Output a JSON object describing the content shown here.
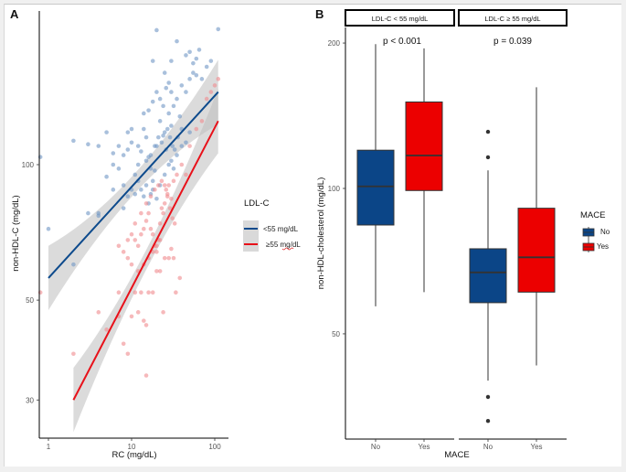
{
  "chart_data": [
    {
      "panel": "A",
      "type": "scatter",
      "title": "",
      "xlabel": "RC (mg/dL)",
      "ylabel": "non-HDL-C (mg/dL)",
      "x_scale": "log10",
      "y_scale": "log10",
      "xlim": [
        0.8,
        130
      ],
      "ylim": [
        22,
        210
      ],
      "x_ticks": [
        1,
        10,
        100
      ],
      "x_tick_labels": [
        "1",
        "10",
        "100"
      ],
      "y_ticks": [
        30,
        50,
        100
      ],
      "y_tick_labels": [
        "30",
        "50",
        "100"
      ],
      "grid": false,
      "legend": {
        "title": "LDL-C",
        "position": "right",
        "entries": [
          {
            "label": "<55 mg/dL",
            "color": "#0d4a8c"
          },
          {
            "label": "≥55 mg/dL",
            "color": "#e8111a"
          }
        ]
      },
      "series": [
        {
          "name": "<55 mg/dL",
          "color": "#0d4a8c",
          "point_color": "#6f96c4",
          "fit_line": {
            "x": [
              1,
              110
            ],
            "y": [
              56,
              145
            ]
          },
          "points": [
            [
              0.8,
              104
            ],
            [
              1,
              72
            ],
            [
              2,
              60
            ],
            [
              3,
              78
            ],
            [
              4,
              78
            ],
            [
              4,
              77
            ],
            [
              5,
              94
            ],
            [
              6,
              88
            ],
            [
              8,
              80
            ],
            [
              2,
              113
            ],
            [
              3,
              111
            ],
            [
              4,
              110
            ],
            [
              5,
              118
            ],
            [
              6,
              100
            ],
            [
              7,
              98
            ],
            [
              8,
              105
            ],
            [
              9,
              108
            ],
            [
              10,
              112
            ],
            [
              11,
              95
            ],
            [
              12,
              100
            ],
            [
              13,
              107
            ],
            [
              14,
              120
            ],
            [
              15,
              115
            ],
            [
              16,
              104
            ],
            [
              17,
              98
            ],
            [
              18,
              92
            ],
            [
              19,
              97
            ],
            [
              20,
              110
            ],
            [
              22,
              125
            ],
            [
              24,
              116
            ],
            [
              26,
              108
            ],
            [
              28,
              130
            ],
            [
              30,
              122
            ],
            [
              32,
              135
            ],
            [
              35,
              140
            ],
            [
              38,
              128
            ],
            [
              40,
              150
            ],
            [
              45,
              145
            ],
            [
              50,
              155
            ],
            [
              55,
              160
            ],
            [
              60,
              158
            ],
            [
              70,
              155
            ],
            [
              80,
              165
            ],
            [
              90,
              170
            ],
            [
              110,
              200
            ],
            [
              20,
              199
            ],
            [
              35,
              188
            ],
            [
              18,
              170
            ],
            [
              25,
              160
            ],
            [
              30,
              170
            ],
            [
              45,
              175
            ],
            [
              50,
              178
            ],
            [
              55,
              168
            ],
            [
              60,
              172
            ],
            [
              65,
              180
            ],
            [
              8,
              90
            ],
            [
              9,
              85
            ],
            [
              10,
              88
            ],
            [
              11,
              86
            ],
            [
              12,
              92
            ],
            [
              13,
              88
            ],
            [
              14,
              85
            ],
            [
              15,
              90
            ],
            [
              16,
              82
            ],
            [
              17,
              86
            ],
            [
              18,
              88
            ],
            [
              20,
              84
            ],
            [
              22,
              90
            ],
            [
              25,
              95
            ],
            [
              28,
              100
            ],
            [
              30,
              102
            ],
            [
              32,
              98
            ],
            [
              35,
              105
            ],
            [
              40,
              110
            ],
            [
              45,
              112
            ],
            [
              50,
              118
            ],
            [
              14,
              130
            ],
            [
              16,
              132
            ],
            [
              18,
              138
            ],
            [
              20,
              145
            ],
            [
              22,
              140
            ],
            [
              24,
              135
            ],
            [
              26,
              148
            ],
            [
              28,
              152
            ],
            [
              30,
              145
            ],
            [
              15,
              102
            ],
            [
              17,
              105
            ],
            [
              19,
              110
            ],
            [
              21,
              115
            ],
            [
              23,
              112
            ],
            [
              25,
              118
            ],
            [
              27,
              120
            ],
            [
              29,
              115
            ],
            [
              31,
              110
            ],
            [
              33,
              108
            ],
            [
              36,
              115
            ],
            [
              40,
              120
            ],
            [
              12,
              110
            ],
            [
              10,
              120
            ],
            [
              9,
              118
            ],
            [
              7,
              110
            ],
            [
              6,
              106
            ]
          ]
        },
        {
          "name": "≥55 mg/dL",
          "color": "#e8111a",
          "point_color": "#f08a8e",
          "fit_line": {
            "x": [
              2,
              110
            ],
            "y": [
              30,
              125
            ]
          },
          "points": [
            [
              0.8,
              52
            ],
            [
              2,
              38
            ],
            [
              4,
              47
            ],
            [
              5,
              43
            ],
            [
              7,
              52
            ],
            [
              7,
              46
            ],
            [
              8,
              40
            ],
            [
              9,
              38
            ],
            [
              10,
              46
            ],
            [
              11,
              52
            ],
            [
              12,
              47
            ],
            [
              13,
              52
            ],
            [
              14,
              45
            ],
            [
              15,
              44
            ],
            [
              15,
              34
            ],
            [
              16,
              52
            ],
            [
              18,
              52
            ],
            [
              20,
              58
            ],
            [
              22,
              58
            ],
            [
              24,
              47
            ],
            [
              25,
              62
            ],
            [
              28,
              62
            ],
            [
              30,
              65
            ],
            [
              32,
              62
            ],
            [
              34,
              52
            ],
            [
              38,
              56
            ],
            [
              10,
              70
            ],
            [
              11,
              68
            ],
            [
              12,
              66
            ],
            [
              13,
              70
            ],
            [
              14,
              72
            ],
            [
              15,
              75
            ],
            [
              16,
              78
            ],
            [
              17,
              72
            ],
            [
              18,
              70
            ],
            [
              19,
              66
            ],
            [
              20,
              64
            ],
            [
              21,
              68
            ],
            [
              22,
              74
            ],
            [
              23,
              80
            ],
            [
              24,
              78
            ],
            [
              25,
              82
            ],
            [
              26,
              88
            ],
            [
              27,
              85
            ],
            [
              28,
              90
            ],
            [
              30,
              84
            ],
            [
              32,
              92
            ],
            [
              35,
              95
            ],
            [
              40,
              100
            ],
            [
              45,
              95
            ],
            [
              50,
              110
            ],
            [
              60,
              120
            ],
            [
              70,
              125
            ],
            [
              80,
              140
            ],
            [
              90,
              145
            ],
            [
              100,
              150
            ],
            [
              110,
              155
            ],
            [
              9,
              62
            ],
            [
              10,
              60
            ],
            [
              12,
              58
            ],
            [
              14,
              60
            ],
            [
              16,
              62
            ],
            [
              18,
              64
            ],
            [
              20,
              66
            ],
            [
              22,
              68
            ],
            [
              8,
              64
            ],
            [
              7,
              66
            ],
            [
              9,
              68
            ],
            [
              11,
              74
            ],
            [
              13,
              78
            ],
            [
              15,
              82
            ],
            [
              17,
              85
            ],
            [
              19,
              88
            ],
            [
              21,
              90
            ],
            [
              23,
              92
            ],
            [
              25,
              90
            ],
            [
              27,
              86
            ],
            [
              29,
              80
            ],
            [
              31,
              76
            ],
            [
              33,
              74
            ]
          ]
        }
      ]
    },
    {
      "panel": "B",
      "type": "box",
      "title": "",
      "xlabel": "MACE",
      "ylabel": "non-HDL-cholesterol (mg/dL)",
      "y_scale": "log2",
      "ylim": [
        30,
        215
      ],
      "y_ticks": [
        50,
        100,
        200
      ],
      "y_tick_labels": [
        "50",
        "100",
        "200"
      ],
      "grid": false,
      "categories": [
        "No",
        "Yes"
      ],
      "legend": {
        "title": "MACE",
        "position": "right",
        "entries": [
          {
            "label": "No",
            "color": "#0b4587"
          },
          {
            "label": "Yes",
            "color": "#ec0000"
          }
        ]
      },
      "facets": [
        {
          "label": "LDL-C < 55 mg/dL",
          "p_value": "p < 0.001",
          "boxes": [
            {
              "category": "No",
              "color": "#0b4587",
              "whisker_low": 57,
              "q1": 84,
              "median": 101,
              "q3": 120,
              "whisker_high": 199,
              "outliers": []
            },
            {
              "category": "Yes",
              "color": "#ec0000",
              "whisker_low": 61,
              "q1": 99,
              "median": 117,
              "q3": 151,
              "whisker_high": 195,
              "outliers": []
            }
          ]
        },
        {
          "label": "LDL-C ≥ 55 mg/dL",
          "p_value": "p = 0.039",
          "boxes": [
            {
              "category": "No",
              "color": "#0b4587",
              "whisker_low": 40,
              "q1": 58,
              "median": 67,
              "q3": 75,
              "whisker_high": 109,
              "outliers": [
                131,
                116,
                37,
                33
              ]
            },
            {
              "category": "Yes",
              "color": "#ec0000",
              "whisker_low": 43,
              "q1": 61,
              "median": 72,
              "q3": 91,
              "whisker_high": 162,
              "outliers": []
            }
          ]
        }
      ]
    }
  ],
  "labels": {
    "panel_a": "A",
    "panel_b": "B"
  }
}
